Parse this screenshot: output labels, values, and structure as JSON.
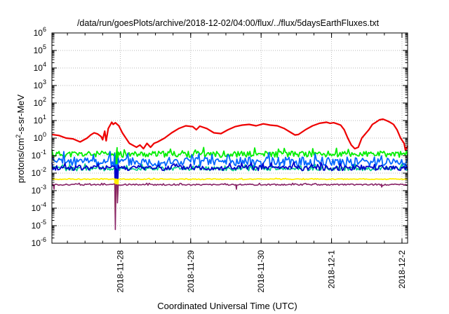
{
  "chart_data": {
    "type": "line",
    "title": "/data/run/goesPlots/archive/2018-12-02/04:00/flux/../flux/5daysEarthFluxes.txt",
    "xlabel": "Coordinated Universal Time (UTC)",
    "ylabel_base": "protons/cm",
    "ylabel_sup": "2",
    "ylabel_rest": "-s-sr-MeV",
    "yscale": "log",
    "ylim_exp": [
      -6,
      6
    ],
    "y_ticks": [
      {
        "base": "10",
        "exp": "-6"
      },
      {
        "base": "10",
        "exp": "-5"
      },
      {
        "base": "10",
        "exp": "-4"
      },
      {
        "base": "10",
        "exp": "-3"
      },
      {
        "base": "10",
        "exp": "-2"
      },
      {
        "base": "10",
        "exp": "-1"
      },
      {
        "base": "10",
        "exp": "0"
      },
      {
        "base": "10",
        "exp": "1"
      },
      {
        "base": "10",
        "exp": "2"
      },
      {
        "base": "10",
        "exp": "3"
      },
      {
        "base": "10",
        "exp": "4"
      },
      {
        "base": "10",
        "exp": "5"
      },
      {
        "base": "10",
        "exp": "6"
      }
    ],
    "xlim": [
      0,
      5.05
    ],
    "x_ticks": [
      {
        "x": 0.97,
        "label": "2018-11-28"
      },
      {
        "x": 1.97,
        "label": "2018-11-29"
      },
      {
        "x": 2.97,
        "label": "2018-11-30"
      },
      {
        "x": 3.97,
        "label": "2018-12-1"
      },
      {
        "x": 4.97,
        "label": "2018-12-2"
      }
    ],
    "grid": true,
    "legend": "none",
    "series": [
      {
        "color": "#ee0000",
        "width": 2.2,
        "points": [
          [
            0,
            1.6
          ],
          [
            0.1,
            1.4
          ],
          [
            0.2,
            1.0
          ],
          [
            0.3,
            0.9
          ],
          [
            0.4,
            0.6
          ],
          [
            0.5,
            1.0
          ],
          [
            0.55,
            1.5
          ],
          [
            0.6,
            2.0
          ],
          [
            0.65,
            1.7
          ],
          [
            0.7,
            1.2
          ],
          [
            0.72,
            0.8
          ],
          [
            0.75,
            2.5
          ],
          [
            0.77,
            0.7
          ],
          [
            0.8,
            3.5
          ],
          [
            0.85,
            8.0
          ],
          [
            0.87,
            6.0
          ],
          [
            0.9,
            7.5
          ],
          [
            0.95,
            5.0
          ],
          [
            1.0,
            2.0
          ],
          [
            1.05,
            1.0
          ],
          [
            1.1,
            0.5
          ],
          [
            1.2,
            0.3
          ],
          [
            1.25,
            0.4
          ],
          [
            1.3,
            0.25
          ],
          [
            1.35,
            0.5
          ],
          [
            1.4,
            0.3
          ],
          [
            1.45,
            0.5
          ],
          [
            1.5,
            0.6
          ],
          [
            1.6,
            1.0
          ],
          [
            1.7,
            2.0
          ],
          [
            1.8,
            3.5
          ],
          [
            1.9,
            5.0
          ],
          [
            2.0,
            4.5
          ],
          [
            2.05,
            3.0
          ],
          [
            2.1,
            4.8
          ],
          [
            2.2,
            3.5
          ],
          [
            2.3,
            2.0
          ],
          [
            2.4,
            1.8
          ],
          [
            2.5,
            3.0
          ],
          [
            2.6,
            4.5
          ],
          [
            2.7,
            5.5
          ],
          [
            2.8,
            6.0
          ],
          [
            2.9,
            5.0
          ],
          [
            3.0,
            6.5
          ],
          [
            3.1,
            5.5
          ],
          [
            3.2,
            5.0
          ],
          [
            3.3,
            3.5
          ],
          [
            3.4,
            2.0
          ],
          [
            3.45,
            1.5
          ],
          [
            3.5,
            1.6
          ],
          [
            3.6,
            3.0
          ],
          [
            3.7,
            5.0
          ],
          [
            3.8,
            7.0
          ],
          [
            3.9,
            8.0
          ],
          [
            3.95,
            7.0
          ],
          [
            4.0,
            7.5
          ],
          [
            4.05,
            6.5
          ],
          [
            4.1,
            5.5
          ],
          [
            4.15,
            3.0
          ],
          [
            4.2,
            1.0
          ],
          [
            4.25,
            0.4
          ],
          [
            4.3,
            0.25
          ],
          [
            4.35,
            0.3
          ],
          [
            4.4,
            1.0
          ],
          [
            4.5,
            3.0
          ],
          [
            4.55,
            6.0
          ],
          [
            4.6,
            8.0
          ],
          [
            4.65,
            11.0
          ],
          [
            4.7,
            12.0
          ],
          [
            4.75,
            10.0
          ],
          [
            4.8,
            8.0
          ],
          [
            4.85,
            6.0
          ],
          [
            4.9,
            3.0
          ],
          [
            4.95,
            1.0
          ],
          [
            5.0,
            0.5
          ],
          [
            5.02,
            0.2
          ],
          [
            5.05,
            0.35
          ]
        ]
      },
      {
        "color": "#00ee00",
        "width": 1.8,
        "noise": [
          {
            "base": 0.12,
            "amp": 0.35,
            "seed": 11
          }
        ],
        "dips": [
          [
            0.9,
            0.0008
          ],
          [
            0.93,
            0.0015
          ]
        ]
      },
      {
        "color": "#0066ff",
        "width": 1.8,
        "noise": [
          {
            "base": 0.045,
            "amp": 0.55,
            "seed": 23
          }
        ],
        "dips": [
          [
            0.9,
            0.0005
          ],
          [
            0.93,
            0.001
          ]
        ]
      },
      {
        "color": "#00cc88",
        "width": 1.6,
        "noise": [
          {
            "base": 0.018,
            "amp": 0.25,
            "seed": 37
          }
        ],
        "dips": [
          [
            0.9,
            0.0003
          ],
          [
            0.93,
            0.0008
          ]
        ]
      },
      {
        "color": "#0000cc",
        "width": 1.8,
        "noise": [
          {
            "base": 0.02,
            "amp": 0.3,
            "seed": 41
          }
        ],
        "dips": [
          [
            0.9,
            0.0002
          ],
          [
            0.93,
            0.0006
          ]
        ]
      },
      {
        "color": "#ffee00",
        "width": 1.8,
        "noise": [
          {
            "base": 0.0045,
            "amp": 0.05,
            "seed": 53
          }
        ],
        "dips": [
          [
            0.9,
            3e-05
          ],
          [
            0.93,
            0.0003
          ]
        ]
      },
      {
        "color": "#882266",
        "width": 1.6,
        "noise": [
          {
            "base": 0.0022,
            "amp": 0.08,
            "seed": 67
          }
        ],
        "dips": [
          [
            0.03,
            0.0012
          ],
          [
            0.9,
            6e-06
          ],
          [
            0.93,
            0.0002
          ],
          [
            2.62,
            0.0012
          ],
          [
            4.68,
            0.0016
          ]
        ]
      }
    ]
  }
}
